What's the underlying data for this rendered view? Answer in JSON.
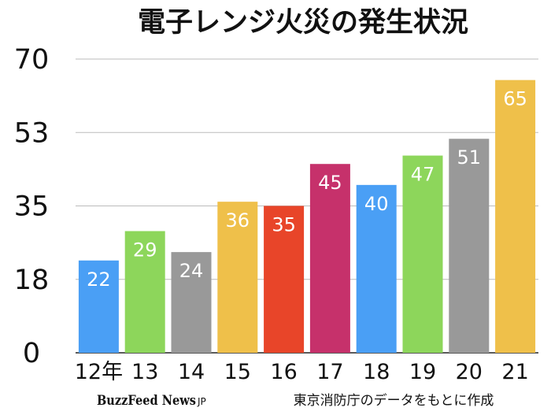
{
  "chart_data": {
    "type": "bar",
    "title": "電子レンジ火災の発生状況",
    "categories": [
      "12年",
      "13",
      "14",
      "15",
      "16",
      "17",
      "18",
      "19",
      "20",
      "21"
    ],
    "values": [
      22,
      29,
      24,
      36,
      35,
      45,
      40,
      47,
      51,
      65
    ],
    "bar_colors": [
      "#4a9ff5",
      "#8dd65b",
      "#999999",
      "#efc04a",
      "#e84529",
      "#c6316b",
      "#4a9ff5",
      "#8dd65b",
      "#999999",
      "#efc04a"
    ],
    "y_ticks": [
      "0",
      "18",
      "35",
      "53",
      "70"
    ],
    "y_tick_values": [
      0,
      17.5,
      35,
      52.5,
      70
    ],
    "ylim": [
      0,
      70
    ],
    "grid": true,
    "xlabel": "",
    "ylabel": ""
  },
  "footer": {
    "brand": "BuzzFeed News",
    "brand_suffix": "JP",
    "source": "東京消防庁のデータをもとに作成"
  }
}
